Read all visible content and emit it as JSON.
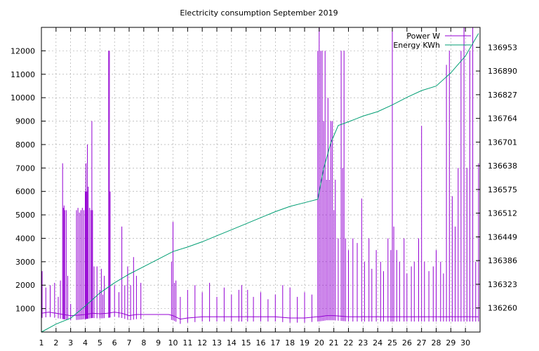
{
  "chart_data": {
    "type": "line",
    "title": "Electricity consumption September 2019",
    "xlabel": "",
    "ylabel": "",
    "x_ticks": [
      "1",
      "2",
      "3",
      "4",
      "5",
      "6",
      "7",
      "8",
      "9",
      "10",
      "11",
      "12",
      "13",
      "14",
      "15",
      "16",
      "17",
      "18",
      "19",
      "20",
      "21",
      "22",
      "23",
      "24",
      "25",
      "26",
      "27",
      "28",
      "29",
      "30"
    ],
    "xlim": [
      1,
      31
    ],
    "ylim": [
      0,
      13000
    ],
    "y_ticks": [
      1000,
      2000,
      3000,
      4000,
      5000,
      6000,
      7000,
      8000,
      9000,
      10000,
      11000,
      12000
    ],
    "y2lim": [
      136196,
      137006
    ],
    "y2_ticks": [
      "136260",
      "136323",
      "136386",
      "136449",
      "136512",
      "136575",
      "136638",
      "136701",
      "136764",
      "136827",
      "136890",
      "136953"
    ],
    "grid": true,
    "legend_position": "top-right",
    "series": [
      {
        "name": "Power W",
        "axis": "left",
        "color": "#9400d3",
        "baseline": [
          [
            1,
            800
          ],
          [
            1.5,
            850
          ],
          [
            2,
            800
          ],
          [
            2.5,
            750
          ],
          [
            3,
            700
          ],
          [
            3.5,
            720
          ],
          [
            4,
            750
          ],
          [
            4.5,
            800
          ],
          [
            5,
            780
          ],
          [
            5.5,
            800
          ],
          [
            6,
            850
          ],
          [
            6.5,
            800
          ],
          [
            7,
            700
          ],
          [
            7.5,
            750
          ],
          [
            8,
            750
          ],
          [
            9,
            750
          ],
          [
            9.7,
            750
          ],
          [
            10,
            700
          ],
          [
            10.5,
            550
          ],
          [
            11,
            600
          ],
          [
            12,
            650
          ],
          [
            13,
            650
          ],
          [
            14,
            650
          ],
          [
            15,
            650
          ],
          [
            16,
            650
          ],
          [
            17,
            650
          ],
          [
            18,
            600
          ],
          [
            19,
            600
          ],
          [
            19.8,
            650
          ],
          [
            20,
            650
          ],
          [
            20.5,
            700
          ],
          [
            21,
            700
          ],
          [
            22,
            650
          ],
          [
            23,
            650
          ],
          [
            24,
            650
          ],
          [
            25,
            650
          ],
          [
            26,
            650
          ],
          [
            27,
            650
          ],
          [
            28,
            650
          ],
          [
            29,
            650
          ],
          [
            30,
            650
          ],
          [
            30.9,
            650
          ]
        ],
        "spikes": [
          [
            1.05,
            2600
          ],
          [
            1.3,
            1900
          ],
          [
            1.6,
            2000
          ],
          [
            1.9,
            2100
          ],
          [
            2.15,
            1500
          ],
          [
            2.3,
            2200
          ],
          [
            2.45,
            7200
          ],
          [
            2.5,
            5300
          ],
          [
            2.55,
            5400
          ],
          [
            2.6,
            5200
          ],
          [
            2.7,
            5200
          ],
          [
            2.8,
            2400
          ],
          [
            3,
            1200
          ],
          [
            3.4,
            5200
          ],
          [
            3.5,
            5300
          ],
          [
            3.6,
            5100
          ],
          [
            3.7,
            5200
          ],
          [
            3.8,
            5300
          ],
          [
            3.9,
            5200
          ],
          [
            4.0,
            6000
          ],
          [
            4.05,
            7200
          ],
          [
            4.1,
            6000
          ],
          [
            4.15,
            8000
          ],
          [
            4.2,
            6200
          ],
          [
            4.3,
            5300
          ],
          [
            4.4,
            5200
          ],
          [
            4.45,
            9000
          ],
          [
            4.5,
            5200
          ],
          [
            4.6,
            2800
          ],
          [
            4.8,
            2800
          ],
          [
            5,
            1800
          ],
          [
            5.1,
            2700
          ],
          [
            5.2,
            1600
          ],
          [
            5.3,
            2400
          ],
          [
            5.6,
            12000
          ],
          [
            5.65,
            12000
          ],
          [
            5.7,
            6000
          ],
          [
            6.0,
            2000
          ],
          [
            6.3,
            1700
          ],
          [
            6.5,
            4500
          ],
          [
            6.7,
            2000
          ],
          [
            6.9,
            2800
          ],
          [
            7.1,
            2000
          ],
          [
            7.3,
            3200
          ],
          [
            7.5,
            2400
          ],
          [
            7.8,
            2100
          ],
          [
            9.9,
            3000
          ],
          [
            10.0,
            4700
          ],
          [
            10.1,
            2100
          ],
          [
            10.2,
            2200
          ],
          [
            10.5,
            1500
          ],
          [
            11,
            1800
          ],
          [
            11.5,
            2000
          ],
          [
            12,
            1700
          ],
          [
            12.5,
            2100
          ],
          [
            13,
            1500
          ],
          [
            13.5,
            1900
          ],
          [
            14,
            1600
          ],
          [
            14.5,
            1800
          ],
          [
            14.7,
            2000
          ],
          [
            15.1,
            1800
          ],
          [
            15.5,
            1500
          ],
          [
            16,
            1700
          ],
          [
            16.5,
            1400
          ],
          [
            17,
            1600
          ],
          [
            17.5,
            2000
          ],
          [
            18,
            1900
          ],
          [
            18.5,
            1500
          ],
          [
            19,
            1700
          ],
          [
            19.5,
            1600
          ],
          [
            19.9,
            12000
          ],
          [
            20.0,
            13000
          ],
          [
            20.1,
            12000
          ],
          [
            20.2,
            12000
          ],
          [
            20.3,
            9000
          ],
          [
            20.4,
            12000
          ],
          [
            20.5,
            6500
          ],
          [
            20.6,
            10000
          ],
          [
            20.7,
            6500
          ],
          [
            20.8,
            9000
          ],
          [
            20.9,
            9000
          ],
          [
            21.0,
            5200
          ],
          [
            21.1,
            6500
          ],
          [
            21.3,
            4000
          ],
          [
            21.5,
            12000
          ],
          [
            21.6,
            7000
          ],
          [
            21.7,
            12000
          ],
          [
            21.8,
            4000
          ],
          [
            22.0,
            3500
          ],
          [
            22.3,
            4000
          ],
          [
            22.6,
            3800
          ],
          [
            22.9,
            5700
          ],
          [
            23.1,
            3000
          ],
          [
            23.4,
            4000
          ],
          [
            23.6,
            2700
          ],
          [
            23.9,
            3500
          ],
          [
            24.2,
            3000
          ],
          [
            24.4,
            2600
          ],
          [
            24.7,
            4000
          ],
          [
            24.9,
            3500
          ],
          [
            25.0,
            13000
          ],
          [
            25.1,
            4500
          ],
          [
            25.3,
            3500
          ],
          [
            25.5,
            3000
          ],
          [
            25.8,
            4000
          ],
          [
            26,
            2500
          ],
          [
            26.3,
            2800
          ],
          [
            26.5,
            3000
          ],
          [
            26.8,
            4000
          ],
          [
            27,
            8800
          ],
          [
            27.2,
            3000
          ],
          [
            27.5,
            2600
          ],
          [
            27.8,
            2800
          ],
          [
            28,
            3500
          ],
          [
            28.3,
            3000
          ],
          [
            28.5,
            2500
          ],
          [
            28.7,
            11400
          ],
          [
            28.9,
            12000
          ],
          [
            29.1,
            5800
          ],
          [
            29.3,
            4500
          ],
          [
            29.5,
            7000
          ],
          [
            29.7,
            12000
          ],
          [
            29.9,
            13000
          ],
          [
            30.1,
            7000
          ],
          [
            30.3,
            12000
          ],
          [
            30.5,
            13000
          ],
          [
            30.7,
            3000
          ],
          [
            30.9,
            7200
          ]
        ]
      },
      {
        "name": "Energy KWh",
        "axis": "right",
        "color": "#009e73",
        "points": [
          [
            1,
            136196
          ],
          [
            2,
            136217
          ],
          [
            3,
            136233
          ],
          [
            4,
            136265
          ],
          [
            5,
            136300
          ],
          [
            6,
            136327
          ],
          [
            7,
            136350
          ],
          [
            8,
            136370
          ],
          [
            9,
            136390
          ],
          [
            10,
            136410
          ],
          [
            11,
            136422
          ],
          [
            12,
            136436
          ],
          [
            13,
            136452
          ],
          [
            14,
            136468
          ],
          [
            15,
            136484
          ],
          [
            16,
            136500
          ],
          [
            17,
            136516
          ],
          [
            18,
            136530
          ],
          [
            19,
            136540
          ],
          [
            19.9,
            136549
          ],
          [
            20.3,
            136630
          ],
          [
            20.8,
            136700
          ],
          [
            21.3,
            136745
          ],
          [
            22,
            136755
          ],
          [
            23,
            136770
          ],
          [
            24,
            136782
          ],
          [
            25,
            136800
          ],
          [
            26,
            136820
          ],
          [
            27,
            136838
          ],
          [
            28,
            136850
          ],
          [
            29,
            136885
          ],
          [
            30,
            136930
          ],
          [
            30.9,
            136990
          ]
        ]
      }
    ]
  }
}
